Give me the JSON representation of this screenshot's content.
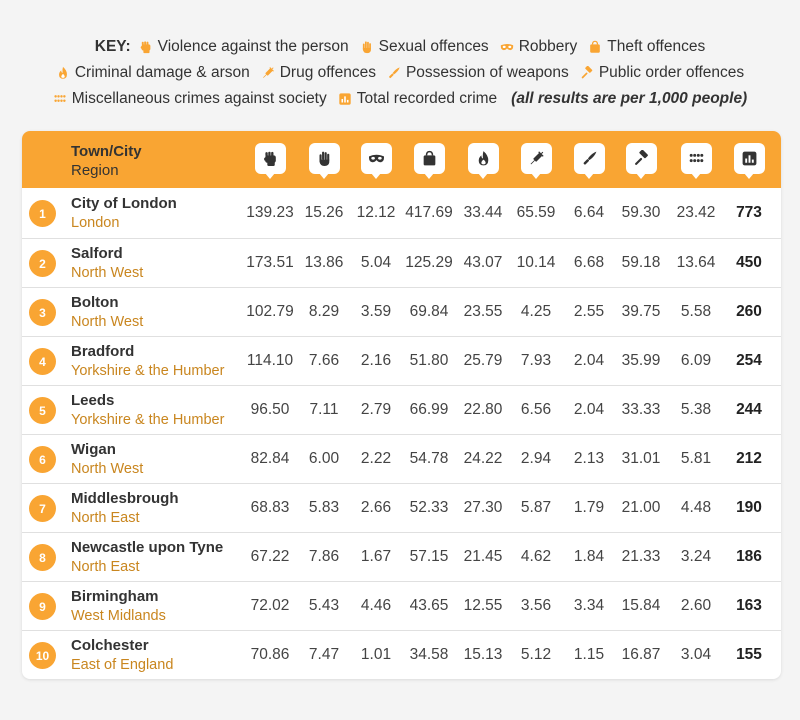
{
  "key": {
    "title": "KEY:",
    "items": [
      {
        "icon": "violence-fist-icon",
        "label": "Violence against the person"
      },
      {
        "icon": "sexual-hand-icon",
        "label": "Sexual offences"
      },
      {
        "icon": "robbery-mask-icon",
        "label": "Robbery"
      },
      {
        "icon": "theft-bag-icon",
        "label": "Theft offences"
      },
      {
        "icon": "arson-flame-icon",
        "label": "Criminal damage & arson"
      },
      {
        "icon": "drug-syringe-icon",
        "label": "Drug offences"
      },
      {
        "icon": "weapon-knife-icon",
        "label": "Possession of weapons"
      },
      {
        "icon": "order-gavel-icon",
        "label": "Public order offences"
      },
      {
        "icon": "misc-dots-icon",
        "label": "Miscellaneous crimes against society"
      },
      {
        "icon": "total-chart-icon",
        "label": "Total recorded crime"
      }
    ],
    "note": "(all results are per 1,000 people)"
  },
  "colors": {
    "accent": "#f9a533",
    "region_text": "#c9861f",
    "background": "#f4f4f4"
  },
  "chart_data": {
    "type": "table",
    "header": {
      "city": "Town/City",
      "region": "Region"
    },
    "columns": [
      {
        "key": "violence",
        "icon": "violence-fist-icon"
      },
      {
        "key": "sexual",
        "icon": "sexual-hand-icon"
      },
      {
        "key": "robbery",
        "icon": "robbery-mask-icon"
      },
      {
        "key": "theft",
        "icon": "theft-bag-icon"
      },
      {
        "key": "arson",
        "icon": "arson-flame-icon"
      },
      {
        "key": "drugs",
        "icon": "drug-syringe-icon"
      },
      {
        "key": "weapons",
        "icon": "weapon-knife-icon"
      },
      {
        "key": "public_order",
        "icon": "order-gavel-icon"
      },
      {
        "key": "misc",
        "icon": "misc-dots-icon"
      },
      {
        "key": "total",
        "icon": "total-chart-icon"
      }
    ],
    "rows": [
      {
        "rank": "1",
        "city": "City of London",
        "region": "London",
        "values": [
          "139.23",
          "15.26",
          "12.12",
          "417.69",
          "33.44",
          "65.59",
          "6.64",
          "59.30",
          "23.42",
          "773"
        ]
      },
      {
        "rank": "2",
        "city": "Salford",
        "region": "North West",
        "values": [
          "173.51",
          "13.86",
          "5.04",
          "125.29",
          "43.07",
          "10.14",
          "6.68",
          "59.18",
          "13.64",
          "450"
        ]
      },
      {
        "rank": "3",
        "city": "Bolton",
        "region": "North West",
        "values": [
          "102.79",
          "8.29",
          "3.59",
          "69.84",
          "23.55",
          "4.25",
          "2.55",
          "39.75",
          "5.58",
          "260"
        ]
      },
      {
        "rank": "4",
        "city": "Bradford",
        "region": "Yorkshire & the Humber",
        "values": [
          "114.10",
          "7.66",
          "2.16",
          "51.80",
          "25.79",
          "7.93",
          "2.04",
          "35.99",
          "6.09",
          "254"
        ]
      },
      {
        "rank": "5",
        "city": "Leeds",
        "region": "Yorkshire & the Humber",
        "values": [
          "96.50",
          "7.11",
          "2.79",
          "66.99",
          "22.80",
          "6.56",
          "2.04",
          "33.33",
          "5.38",
          "244"
        ]
      },
      {
        "rank": "6",
        "city": "Wigan",
        "region": "North West",
        "values": [
          "82.84",
          "6.00",
          "2.22",
          "54.78",
          "24.22",
          "2.94",
          "2.13",
          "31.01",
          "5.81",
          "212"
        ]
      },
      {
        "rank": "7",
        "city": "Middlesbrough",
        "region": "North East",
        "values": [
          "68.83",
          "5.83",
          "2.66",
          "52.33",
          "27.30",
          "5.87",
          "1.79",
          "21.00",
          "4.48",
          "190"
        ]
      },
      {
        "rank": "8",
        "city": "Newcastle upon Tyne",
        "region": "North East",
        "values": [
          "67.22",
          "7.86",
          "1.67",
          "57.15",
          "21.45",
          "4.62",
          "1.84",
          "21.33",
          "3.24",
          "186"
        ]
      },
      {
        "rank": "9",
        "city": "Birmingham",
        "region": "West Midlands",
        "values": [
          "72.02",
          "5.43",
          "4.46",
          "43.65",
          "12.55",
          "3.56",
          "3.34",
          "15.84",
          "2.60",
          "163"
        ]
      },
      {
        "rank": "10",
        "city": "Colchester",
        "region": "East of England",
        "values": [
          "70.86",
          "7.47",
          "1.01",
          "34.58",
          "15.13",
          "5.12",
          "1.15",
          "16.87",
          "3.04",
          "155"
        ]
      }
    ]
  }
}
